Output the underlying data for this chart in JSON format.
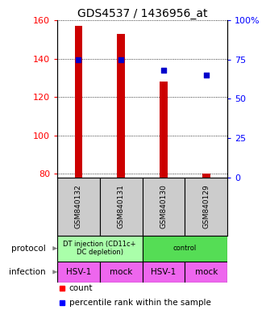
{
  "title": "GDS4537 / 1436956_at",
  "samples": [
    "GSM840132",
    "GSM840131",
    "GSM840130",
    "GSM840129"
  ],
  "counts": [
    157,
    153,
    128,
    80
  ],
  "percentiles": [
    75,
    75,
    68,
    65
  ],
  "ylim_left": [
    78,
    160
  ],
  "ylim_right": [
    0,
    100
  ],
  "yticks_left": [
    80,
    100,
    120,
    140,
    160
  ],
  "yticks_right": [
    0,
    25,
    50,
    75,
    100
  ],
  "ytick_labels_right": [
    "0",
    "25",
    "50",
    "75",
    "100%"
  ],
  "bar_color": "#cc0000",
  "dot_color": "#0000cc",
  "bar_width": 0.18,
  "protocol_data": [
    {
      "start": 0,
      "end": 2,
      "label": "DT injection (CD11c+\nDC depletion)",
      "color": "#aaffaa"
    },
    {
      "start": 2,
      "end": 4,
      "label": "control",
      "color": "#55dd55"
    }
  ],
  "infection_labels": [
    "HSV-1",
    "mock",
    "HSV-1",
    "mock"
  ],
  "infection_color": "#ee66ee",
  "sample_bg": "#cccccc",
  "title_fontsize": 10,
  "tick_fontsize": 8,
  "legend_fontsize": 7.5
}
